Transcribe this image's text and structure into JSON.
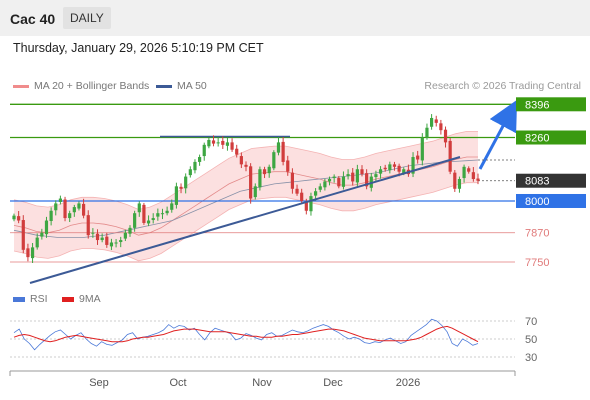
{
  "header": {
    "symbol": "Cac 40",
    "timeframe": "DAILY",
    "timestamp": "Thursday, January 29, 2026 5:10:19 PM CET"
  },
  "legend": {
    "main": [
      {
        "name": "MA 20 + Bollinger Bands",
        "color": "#f08c8c"
      },
      {
        "name": "MA 50",
        "color": "#3c5a96"
      }
    ],
    "rsi": [
      {
        "name": "RSI",
        "color": "#4a78d8"
      },
      {
        "name": "9MA",
        "color": "#e02020"
      }
    ],
    "credit": "Research © 2026 Trading Central"
  },
  "colors": {
    "bull": "#3da642",
    "bear": "#d13d3d",
    "resistance": "#3a9a10",
    "support_blue": "#2f72e6",
    "support_red": "#e07a7a",
    "last": "#333333",
    "trend": "#3c5a96"
  },
  "chart_data": [
    {
      "type": "candlestick",
      "title": "",
      "ylim": [
        7660,
        8430
      ],
      "x_tick_labels": [
        "Sep",
        "Oct",
        "Nov",
        "Dec",
        "2026"
      ],
      "levels": [
        {
          "value": 8396,
          "label": "8396",
          "kind": "resistance"
        },
        {
          "value": 8260,
          "label": "8260",
          "kind": "resistance"
        },
        {
          "value": 8083,
          "label": "8083",
          "kind": "last"
        },
        {
          "value": 8000,
          "label": "8000",
          "kind": "pivot"
        },
        {
          "value": 7870,
          "label": "7870",
          "kind": "support"
        },
        {
          "value": 7750,
          "label": "7750",
          "kind": "support"
        }
      ],
      "close_approx": [
        7940,
        7920,
        7800,
        7770,
        7810,
        7850,
        7870,
        7920,
        7960,
        7990,
        8010,
        7930,
        7950,
        7975,
        7990,
        7940,
        7860,
        7870,
        7840,
        7850,
        7820,
        7830,
        7830,
        7840,
        7870,
        7890,
        7950,
        7990,
        7910,
        7920,
        7930,
        7950,
        7950,
        7960,
        7990,
        8060,
        8050,
        8100,
        8130,
        8160,
        8180,
        8230,
        8250,
        8235,
        8240,
        8230,
        8240,
        8210,
        8190,
        8150,
        8140,
        8010,
        8060,
        8130,
        8110,
        8140,
        8200,
        8240,
        8160,
        8120,
        8050,
        8030,
        8000,
        7960,
        8020,
        8040,
        8060,
        8080,
        8090,
        8100,
        8060,
        8100,
        8110,
        8080,
        8130,
        8110,
        8060,
        8100,
        8110,
        8130,
        8130,
        8150,
        8140,
        8120,
        8130,
        8110,
        8180,
        8170,
        8260,
        8300,
        8340,
        8320,
        8290,
        8240,
        8120,
        8050,
        8090,
        8140,
        8120,
        8090,
        8083
      ],
      "ma20_approx": [
        7900,
        7890,
        7875,
        7870,
        7880,
        7900,
        7910,
        7910,
        7905,
        7895,
        7880,
        7860,
        7870,
        7890,
        7920,
        7950,
        7980,
        8010,
        8040,
        8070,
        8090,
        8110,
        8115,
        8120,
        8120,
        8110,
        8100,
        8090,
        8075,
        8065,
        8065,
        8075,
        8090,
        8100,
        8110,
        8120,
        8130,
        8140,
        8155,
        8170,
        8180,
        8180
      ],
      "ma50_approx": [
        7880,
        7870,
        7860,
        7855,
        7850,
        7850,
        7850,
        7855,
        7860,
        7870,
        7880,
        7890,
        7900,
        7910,
        7920,
        7940,
        7960,
        7980,
        8000,
        8020,
        8040,
        8050,
        8060,
        8070,
        8075,
        8080,
        8085,
        8090,
        8095,
        8100,
        8105,
        8110,
        8115,
        8125,
        8135,
        8145,
        8150,
        8155,
        8160,
        8162,
        8165,
        8168
      ]
    },
    {
      "type": "line",
      "title": "RSI",
      "ylim": [
        20,
        80
      ],
      "y_ticks": [
        30,
        50,
        70
      ],
      "x_tick_labels": [
        "Sep",
        "Oct",
        "Nov",
        "Dec",
        "2026"
      ],
      "series": [
        {
          "name": "RSI",
          "values": [
            57,
            61,
            50,
            45,
            38,
            44,
            49,
            54,
            58,
            60,
            55,
            50,
            54,
            57,
            50,
            45,
            42,
            47,
            44,
            43,
            46,
            49,
            55,
            57,
            50,
            52,
            53,
            55,
            57,
            60,
            66,
            62,
            65,
            64,
            60,
            62,
            55,
            49,
            57,
            62,
            60,
            58,
            56,
            49,
            51,
            56,
            54,
            51,
            49,
            55,
            57,
            53,
            54,
            57,
            60,
            58,
            57,
            59,
            62,
            64,
            66,
            64,
            60,
            57,
            53,
            50,
            52,
            50,
            46,
            45,
            47,
            46,
            49,
            51,
            48,
            45,
            47,
            54,
            58,
            62,
            66,
            72,
            70,
            65,
            58,
            45,
            42,
            50,
            47,
            43,
            45
          ]
        },
        {
          "name": "9MA",
          "values": [
            52,
            54,
            55,
            54,
            52,
            50,
            48,
            47,
            48,
            50,
            52,
            53,
            54,
            53,
            52,
            51,
            50,
            49,
            48,
            47,
            47,
            47,
            48,
            50,
            51,
            52,
            52,
            53,
            54,
            55,
            57,
            59,
            60,
            61,
            61,
            61,
            60,
            59,
            58,
            58,
            58,
            58,
            57,
            56,
            55,
            54,
            53,
            53,
            52,
            52,
            52,
            53,
            53,
            54,
            55,
            55,
            56,
            57,
            58,
            59,
            60,
            61,
            61,
            60,
            59,
            57,
            55,
            53,
            51,
            50,
            49,
            48,
            48,
            48,
            48,
            48,
            48,
            49,
            50,
            52,
            55,
            58,
            61,
            63,
            64,
            62,
            59,
            56,
            53,
            50,
            47
          ]
        }
      ]
    }
  ]
}
